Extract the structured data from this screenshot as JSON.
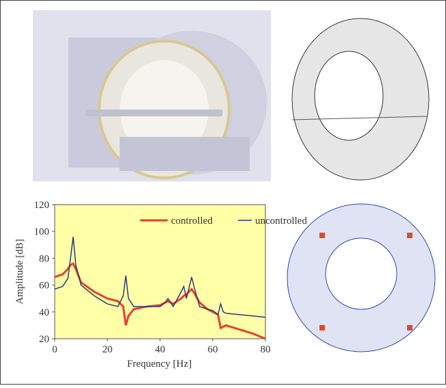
{
  "chart_data": {
    "type": "line",
    "xlabel": "Frequency [Hz]",
    "ylabel": "Amplitude [dB]",
    "x": [
      0,
      3,
      5,
      6,
      7,
      8,
      10,
      15,
      20,
      24,
      26,
      27,
      28,
      30,
      35,
      40,
      42,
      43,
      45,
      48,
      49,
      50,
      52,
      53,
      55,
      58,
      60,
      62,
      63,
      64,
      65,
      70,
      75,
      80
    ],
    "series": [
      {
        "name": "controlled",
        "color": "#e8402a",
        "values": [
          66,
          68,
          72,
          75,
          76,
          72,
          62,
          55,
          50,
          48,
          44,
          30,
          37,
          42,
          44,
          45,
          47,
          48,
          46,
          50,
          52,
          53,
          57,
          54,
          47,
          42,
          40,
          38,
          28,
          29,
          30,
          27,
          24,
          20
        ]
      },
      {
        "name": "uncontrolled",
        "color": "#2a3a7a",
        "values": [
          57,
          59,
          65,
          80,
          96,
          75,
          60,
          52,
          46,
          44,
          52,
          67,
          50,
          44,
          44,
          44,
          47,
          50,
          44,
          55,
          59,
          50,
          66,
          58,
          44,
          42,
          41,
          38,
          46,
          40,
          39,
          38,
          37,
          36
        ]
      }
    ],
    "xlim": [
      0,
      80
    ],
    "xticks": [
      0,
      20,
      40,
      60,
      80
    ],
    "ylim": [
      20,
      120
    ],
    "yticks": [
      20,
      40,
      60,
      80,
      100,
      120
    ],
    "background": "#ffffa8"
  }
}
